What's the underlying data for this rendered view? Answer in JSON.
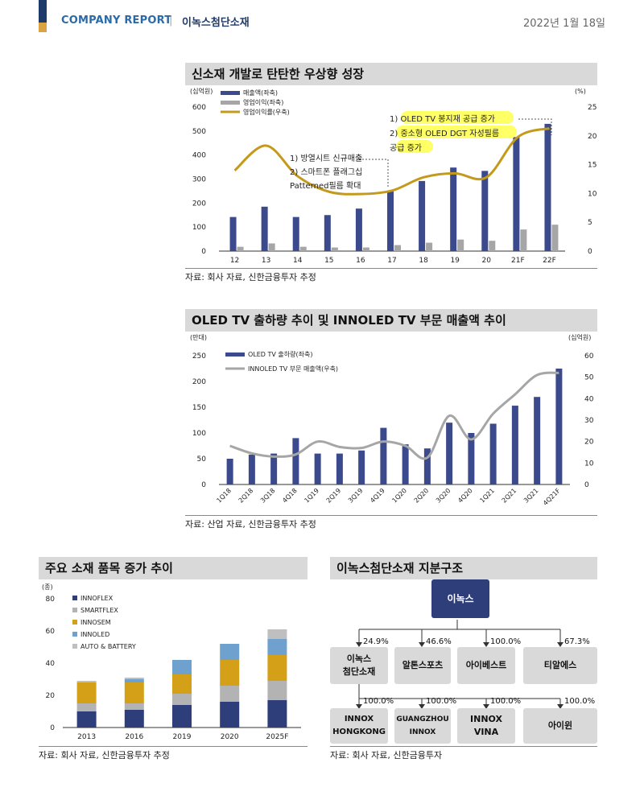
{
  "header": {
    "company_report": "COMPANY REPORT",
    "separator": "|",
    "company_name": "이녹스첨단소재",
    "date": "2022년 1월 18일",
    "accent_top": "#1d3a6b",
    "accent_bottom": "#d9a441"
  },
  "section1": {
    "title": "신소재 개발로 탄탄한 우상향 성장",
    "source": "자료: 회사 자료, 신한금융투자 추정"
  },
  "section2": {
    "title": "OLED TV 출하량 추이 및 INNOLED TV 부문 매출액 추이",
    "source": "자료: 산업 자료, 신한금융투자 추정"
  },
  "section3": {
    "title": "주요 소재 품목 증가 추이",
    "source": "자료: 회사 자료, 신한금융투자 추정"
  },
  "section4": {
    "title": "이녹스첨단소재 지분구조",
    "source": "자료: 회사 자료, 신한금융투자",
    "top": "이녹스",
    "level1": [
      {
        "label": "이녹스\n첨단소재",
        "pct": "24.9%"
      },
      {
        "label": "알톤스포츠",
        "pct": "46.6%"
      },
      {
        "label": "아이베스트",
        "pct": "100.0%"
      },
      {
        "label": "티알에스",
        "pct": "67.3%"
      }
    ],
    "level2": [
      {
        "label": "INNOX\nHONGKONG",
        "pct": "100.0%"
      },
      {
        "label": "GUANGZHOU\nINNOX",
        "pct": "100.0%"
      },
      {
        "label": "INNOX\nVINA",
        "pct": "100.0%"
      },
      {
        "label": "아이윈",
        "pct": "100.0%"
      }
    ]
  },
  "chart_data": [
    {
      "type": "bar",
      "title": "신소재 개발로 탄탄한 우상향 성장",
      "y_left_unit": "(십억원)",
      "y_right_unit": "(%)",
      "categories": [
        "12",
        "13",
        "14",
        "15",
        "16",
        "17",
        "18",
        "19",
        "20",
        "21F",
        "22F"
      ],
      "ylim_left": [
        0,
        600
      ],
      "ylim_right": [
        0,
        25
      ],
      "yticks_left": [
        0,
        100,
        200,
        300,
        400,
        500,
        600
      ],
      "yticks_right": [
        0,
        5,
        10,
        15,
        20,
        25
      ],
      "series": [
        {
          "name": "매출액(좌축)",
          "kind": "bar",
          "axis": "left",
          "color": "#3b4a8c",
          "values": [
            142,
            185,
            142,
            150,
            177,
            250,
            292,
            348,
            334,
            475,
            530
          ]
        },
        {
          "name": "영업이익(좌축)",
          "kind": "bar",
          "axis": "left",
          "color": "#a6a6a6",
          "values": [
            18,
            32,
            18,
            15,
            15,
            25,
            35,
            48,
            43,
            90,
            110
          ]
        },
        {
          "name": "영업이익률(우축)",
          "kind": "line",
          "axis": "right",
          "color": "#c49a1c",
          "values": [
            14,
            18.3,
            13,
            10.3,
            9.9,
            10.5,
            12.8,
            13.5,
            12.8,
            19.8,
            21.3
          ]
        }
      ],
      "annotations": [
        {
          "lines": [
            "1) 방열시트 신규매출",
            "2) 스마트폰 플래그십",
            "Patterned필름 확대"
          ],
          "highlight": false
        },
        {
          "lines": [
            "1) OLED TV 봉지재 공급 증가",
            "2) 중소형 OLED DGT 자성필름",
            "공급 증가"
          ],
          "highlight": true
        }
      ]
    },
    {
      "type": "bar",
      "title": "OLED TV 출하량 추이 및 INNOLED TV 부문 매출액 추이",
      "y_left_unit": "(만대)",
      "y_right_unit": "(십억원)",
      "categories": [
        "1Q18",
        "2Q18",
        "3Q18",
        "4Q18",
        "1Q19",
        "2Q19",
        "3Q19",
        "4Q19",
        "1Q20",
        "2Q20",
        "3Q20",
        "4Q20",
        "1Q21",
        "2Q21",
        "3Q21",
        "4Q21F"
      ],
      "ylim_left": [
        0,
        250
      ],
      "ylim_right": [
        0,
        60
      ],
      "yticks_left": [
        0,
        50,
        100,
        150,
        200,
        250
      ],
      "yticks_right": [
        0,
        10,
        20,
        30,
        40,
        50,
        60
      ],
      "series": [
        {
          "name": "OLED TV 출하량(좌축)",
          "kind": "bar",
          "axis": "left",
          "color": "#3b4a8c",
          "values": [
            50,
            58,
            60,
            90,
            60,
            60,
            66,
            110,
            78,
            70,
            120,
            100,
            118,
            153,
            170,
            225
          ]
        },
        {
          "name": "INNOLED TV 부문 매출액(우축)",
          "kind": "line",
          "axis": "right",
          "color": "#a6a6a6",
          "values": [
            18,
            14.5,
            13,
            14,
            20,
            17.5,
            17,
            20,
            18,
            12.5,
            32,
            21,
            33,
            42,
            51,
            52
          ]
        }
      ]
    },
    {
      "type": "bar",
      "stacked": true,
      "title": "주요 소재 품목 증가 추이",
      "y_unit": "(종)",
      "categories": [
        "2013",
        "2016",
        "2019",
        "2020",
        "2025F"
      ],
      "ylim": [
        0,
        80
      ],
      "yticks": [
        0,
        20,
        40,
        60,
        80
      ],
      "series": [
        {
          "name": "INNOFLEX",
          "color": "#2d3e7a",
          "values": [
            10,
            11,
            14,
            16,
            17
          ]
        },
        {
          "name": "SMARTFLEX",
          "color": "#b3b3b3",
          "values": [
            5,
            4,
            7,
            10,
            12
          ]
        },
        {
          "name": "INNOSEM",
          "color": "#d4a017",
          "values": [
            13,
            13,
            12,
            16,
            16
          ]
        },
        {
          "name": "INNOLED",
          "color": "#6fa1cf",
          "values": [
            0,
            2,
            9,
            10,
            10
          ]
        },
        {
          "name": "AUTO & BATTERY",
          "color": "#bfbfbf",
          "values": [
            1,
            1,
            0,
            0,
            6
          ]
        }
      ]
    }
  ]
}
